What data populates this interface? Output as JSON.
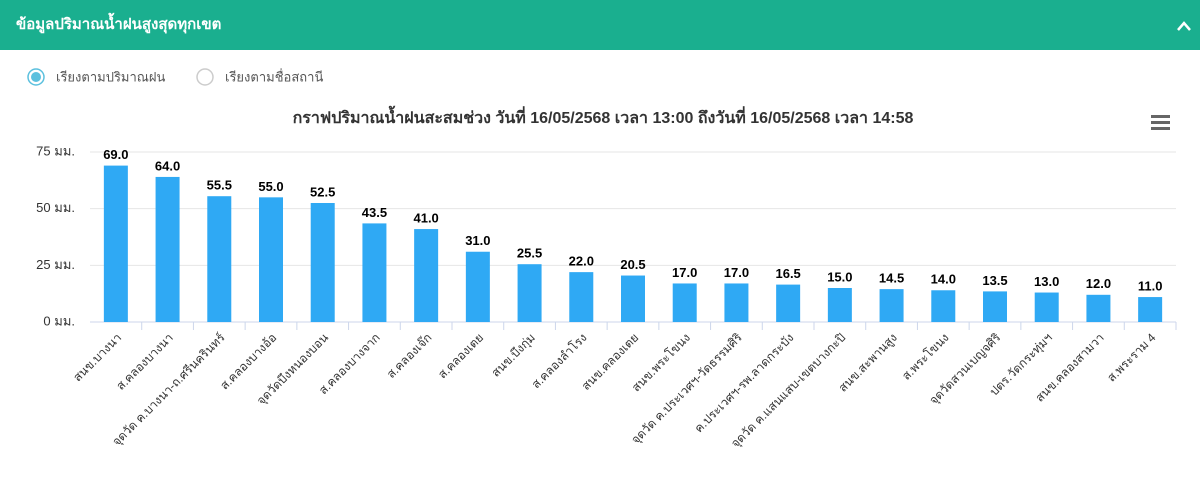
{
  "header": {
    "title": "ข้อมูลปริมาณน้ำฝนสูงสุดทุกเขต"
  },
  "sort_options": [
    {
      "label": "เรียงตามปริมาณฝน",
      "selected": true
    },
    {
      "label": "เรียงตามชื่อสถานี",
      "selected": false
    }
  ],
  "chart_data": {
    "type": "bar",
    "title": "กราฟปริมาณน้ำฝนสะสมช่วง วันที่ 16/05/2568 เวลา 13:00 ถึงวันที่ 16/05/2568 เวลา 14:58",
    "categories": [
      "สนข.บางนา",
      "ส.คลองบางนา",
      "จุดวัด ค.บางนา-ถ.ศรีนครินทร์",
      "ส.คลองบางอ้อ",
      "จุดวัดบึงหนองบอน",
      "ส.คลองบางจาก",
      "ส.คลองเจ๊ก",
      "ส.คลองเตย",
      "สนข.บึงกุ่ม",
      "ส.คลองลำโรง",
      "สนข.คลองเตย",
      "สนข.พระโขนง",
      "จุดวัด ค.ประเวศฯ-วัดธรรมศิริ",
      "ค.ประเวศฯ-รพ.ลาดกระบัง",
      "จุดวัด ค.แสนแสบ-เขตบางกะปิ",
      "สนข.สะพานสูง",
      "ส.พระโขนง",
      "จุดวัดสวนเบญจศิริ",
      "ปตร.วัดกระทุ่มฯ",
      "สนข.คลองสามวา",
      "ส.พระราม 4"
    ],
    "values": [
      69,
      64,
      55.5,
      55,
      52.5,
      43.5,
      41,
      31,
      25.5,
      22,
      20.5,
      17,
      17,
      16.5,
      15,
      14.5,
      14,
      13.5,
      13,
      12,
      11
    ],
    "value_labels": [
      "69.0",
      "64.0",
      "55.5",
      "55.0",
      "52.5",
      "43.5",
      "41.0",
      "31.0",
      "25.5",
      "22.0",
      "20.5",
      "17.0",
      "17.0",
      "16.5",
      "15.0",
      "14.5",
      "14.0",
      "13.5",
      "13.0",
      "12.0",
      "11.0"
    ],
    "color": "#2fa9f4",
    "ylim": [
      0,
      75
    ],
    "yticks": [
      {
        "value": 0,
        "label": "0 มม."
      },
      {
        "value": 25,
        "label": "25 มม."
      },
      {
        "value": 50,
        "label": "50 มม."
      },
      {
        "value": 75,
        "label": "75 มม."
      }
    ],
    "grid": true
  }
}
